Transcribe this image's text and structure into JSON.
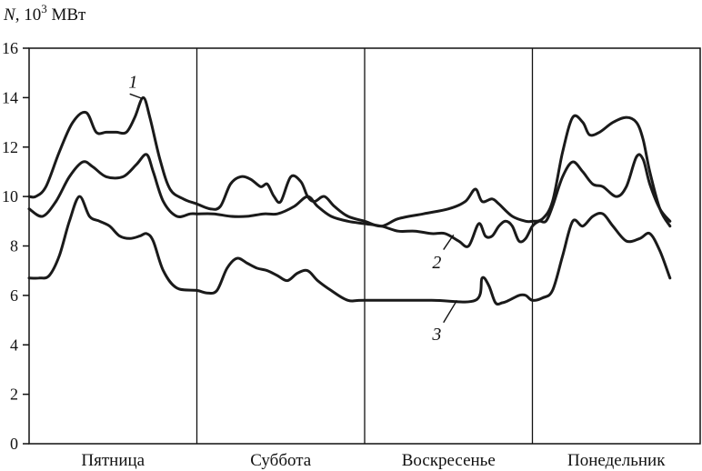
{
  "chart_data": {
    "type": "line",
    "ylabel": {
      "main": "N",
      "sep": ", ",
      "base": "10",
      "exp": "3",
      "unit": " МВт"
    },
    "ylim": [
      0,
      16
    ],
    "yticks": [
      0,
      2,
      4,
      6,
      8,
      10,
      12,
      14,
      16
    ],
    "xlim": [
      0,
      4
    ],
    "categories": [
      "Пятница",
      "Суббота",
      "Воскресенье",
      "Понедельник"
    ],
    "grid": false,
    "series": [
      {
        "name": "1",
        "points": [
          [
            0.0,
            10.0
          ],
          [
            0.04,
            10.0
          ],
          [
            0.1,
            10.4
          ],
          [
            0.18,
            11.8
          ],
          [
            0.26,
            13.0
          ],
          [
            0.34,
            13.4
          ],
          [
            0.4,
            12.6
          ],
          [
            0.46,
            12.6
          ],
          [
            0.52,
            12.6
          ],
          [
            0.58,
            12.6
          ],
          [
            0.63,
            13.2
          ],
          [
            0.68,
            14.0
          ],
          [
            0.72,
            13.2
          ],
          [
            0.78,
            11.5
          ],
          [
            0.84,
            10.3
          ],
          [
            0.92,
            9.9
          ],
          [
            1.0,
            9.7
          ],
          [
            1.08,
            9.5
          ],
          [
            1.14,
            9.6
          ],
          [
            1.2,
            10.5
          ],
          [
            1.26,
            10.8
          ],
          [
            1.32,
            10.7
          ],
          [
            1.38,
            10.4
          ],
          [
            1.42,
            10.5
          ],
          [
            1.46,
            10.0
          ],
          [
            1.5,
            9.8
          ],
          [
            1.56,
            10.8
          ],
          [
            1.62,
            10.6
          ],
          [
            1.66,
            10.0
          ],
          [
            1.7,
            9.8
          ],
          [
            1.76,
            10.0
          ],
          [
            1.82,
            9.6
          ],
          [
            1.9,
            9.2
          ],
          [
            2.0,
            9.0
          ],
          [
            2.1,
            8.8
          ],
          [
            2.2,
            9.1
          ],
          [
            2.35,
            9.3
          ],
          [
            2.5,
            9.5
          ],
          [
            2.6,
            9.8
          ],
          [
            2.66,
            10.3
          ],
          [
            2.7,
            9.8
          ],
          [
            2.76,
            9.9
          ],
          [
            2.8,
            9.7
          ],
          [
            2.88,
            9.2
          ],
          [
            2.96,
            9.0
          ],
          [
            3.0,
            9.0
          ],
          [
            3.06,
            9.1
          ],
          [
            3.12,
            9.8
          ],
          [
            3.18,
            11.8
          ],
          [
            3.24,
            13.2
          ],
          [
            3.3,
            13.0
          ],
          [
            3.34,
            12.5
          ],
          [
            3.4,
            12.6
          ],
          [
            3.48,
            13.0
          ],
          [
            3.56,
            13.2
          ],
          [
            3.62,
            13.0
          ],
          [
            3.66,
            12.3
          ],
          [
            3.7,
            11.0
          ],
          [
            3.76,
            9.5
          ],
          [
            3.82,
            8.8
          ]
        ]
      },
      {
        "name": "2",
        "points": [
          [
            0.0,
            9.5
          ],
          [
            0.08,
            9.2
          ],
          [
            0.16,
            9.8
          ],
          [
            0.24,
            10.8
          ],
          [
            0.32,
            11.4
          ],
          [
            0.38,
            11.2
          ],
          [
            0.46,
            10.8
          ],
          [
            0.56,
            10.8
          ],
          [
            0.64,
            11.3
          ],
          [
            0.7,
            11.7
          ],
          [
            0.74,
            11.0
          ],
          [
            0.8,
            9.8
          ],
          [
            0.88,
            9.2
          ],
          [
            0.96,
            9.3
          ],
          [
            1.0,
            9.3
          ],
          [
            1.1,
            9.3
          ],
          [
            1.2,
            9.2
          ],
          [
            1.3,
            9.2
          ],
          [
            1.4,
            9.3
          ],
          [
            1.48,
            9.3
          ],
          [
            1.58,
            9.6
          ],
          [
            1.66,
            10.0
          ],
          [
            1.72,
            9.6
          ],
          [
            1.8,
            9.2
          ],
          [
            1.9,
            9.0
          ],
          [
            2.0,
            8.9
          ],
          [
            2.1,
            8.8
          ],
          [
            2.2,
            8.6
          ],
          [
            2.3,
            8.6
          ],
          [
            2.4,
            8.5
          ],
          [
            2.48,
            8.5
          ],
          [
            2.56,
            8.2
          ],
          [
            2.62,
            8.0
          ],
          [
            2.68,
            8.9
          ],
          [
            2.72,
            8.4
          ],
          [
            2.76,
            8.4
          ],
          [
            2.8,
            8.8
          ],
          [
            2.84,
            9.0
          ],
          [
            2.88,
            8.8
          ],
          [
            2.92,
            8.2
          ],
          [
            2.96,
            8.3
          ],
          [
            3.0,
            8.8
          ],
          [
            3.04,
            9.0
          ],
          [
            3.08,
            9.0
          ],
          [
            3.12,
            9.6
          ],
          [
            3.18,
            10.8
          ],
          [
            3.24,
            11.4
          ],
          [
            3.3,
            11.0
          ],
          [
            3.36,
            10.5
          ],
          [
            3.42,
            10.4
          ],
          [
            3.5,
            10.0
          ],
          [
            3.56,
            10.4
          ],
          [
            3.62,
            11.6
          ],
          [
            3.66,
            11.5
          ],
          [
            3.7,
            10.5
          ],
          [
            3.76,
            9.5
          ],
          [
            3.82,
            9.0
          ]
        ]
      },
      {
        "name": "3",
        "points": [
          [
            0.0,
            6.7
          ],
          [
            0.06,
            6.7
          ],
          [
            0.12,
            6.8
          ],
          [
            0.18,
            7.6
          ],
          [
            0.24,
            9.0
          ],
          [
            0.3,
            10.0
          ],
          [
            0.36,
            9.2
          ],
          [
            0.42,
            9.0
          ],
          [
            0.48,
            8.8
          ],
          [
            0.54,
            8.4
          ],
          [
            0.6,
            8.3
          ],
          [
            0.66,
            8.4
          ],
          [
            0.7,
            8.5
          ],
          [
            0.74,
            8.2
          ],
          [
            0.8,
            7.0
          ],
          [
            0.88,
            6.3
          ],
          [
            1.0,
            6.2
          ],
          [
            1.06,
            6.1
          ],
          [
            1.12,
            6.2
          ],
          [
            1.18,
            7.1
          ],
          [
            1.24,
            7.5
          ],
          [
            1.3,
            7.3
          ],
          [
            1.36,
            7.1
          ],
          [
            1.42,
            7.0
          ],
          [
            1.48,
            6.8
          ],
          [
            1.54,
            6.6
          ],
          [
            1.6,
            6.9
          ],
          [
            1.66,
            7.0
          ],
          [
            1.72,
            6.6
          ],
          [
            1.8,
            6.2
          ],
          [
            1.9,
            5.8
          ],
          [
            2.0,
            5.8
          ],
          [
            2.4,
            5.8
          ],
          [
            2.66,
            5.8
          ],
          [
            2.7,
            6.7
          ],
          [
            2.74,
            6.4
          ],
          [
            2.78,
            5.7
          ],
          [
            2.82,
            5.7
          ],
          [
            2.86,
            5.8
          ],
          [
            2.92,
            6.0
          ],
          [
            2.96,
            6.0
          ],
          [
            3.0,
            5.8
          ],
          [
            3.06,
            5.9
          ],
          [
            3.12,
            6.2
          ],
          [
            3.18,
            7.6
          ],
          [
            3.24,
            9.0
          ],
          [
            3.3,
            8.8
          ],
          [
            3.36,
            9.2
          ],
          [
            3.42,
            9.3
          ],
          [
            3.48,
            8.8
          ],
          [
            3.56,
            8.2
          ],
          [
            3.64,
            8.3
          ],
          [
            3.7,
            8.5
          ],
          [
            3.76,
            7.8
          ],
          [
            3.82,
            6.7
          ]
        ]
      }
    ]
  }
}
